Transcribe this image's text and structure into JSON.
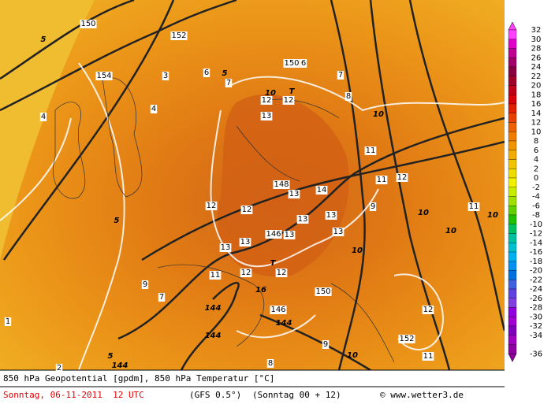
{
  "map": {
    "labels": [
      "5",
      "154",
      "150",
      "152",
      "3",
      "4",
      "4",
      "6",
      "5",
      "7",
      "150",
      "6",
      "10",
      "T",
      "12",
      "12",
      "13",
      "7",
      "8",
      "10",
      "11",
      "11",
      "12",
      "148",
      "13",
      "14",
      "12",
      "12",
      "13",
      "13",
      "9",
      "10",
      "11",
      "10",
      "5",
      "146",
      "13",
      "13",
      "13",
      "13",
      "10",
      "10",
      "T",
      "12",
      "12",
      "11",
      "16",
      "150",
      "144",
      "144",
      "144",
      "146",
      "9",
      "7",
      "12",
      "152",
      "11",
      "10",
      "9",
      "8",
      "5",
      "144",
      "1",
      "2"
    ]
  },
  "legend": {
    "levels": [
      {
        "label": "32",
        "color": "#ff40ff"
      },
      {
        "label": "30",
        "color": "#e000c8"
      },
      {
        "label": "28",
        "color": "#c00090"
      },
      {
        "label": "26",
        "color": "#a00068"
      },
      {
        "label": "24",
        "color": "#880040"
      },
      {
        "label": "22",
        "color": "#a00028"
      },
      {
        "label": "20",
        "color": "#c00018"
      },
      {
        "label": "18",
        "color": "#d80008"
      },
      {
        "label": "16",
        "color": "#e02000"
      },
      {
        "label": "14",
        "color": "#e84000"
      },
      {
        "label": "12",
        "color": "#ec6000"
      },
      {
        "label": "10",
        "color": "#f07c00"
      },
      {
        "label": "8",
        "color": "#f09400"
      },
      {
        "label": "6",
        "color": "#f0ac00"
      },
      {
        "label": "4",
        "color": "#f0c400"
      },
      {
        "label": "2",
        "color": "#f0dc00"
      },
      {
        "label": "0",
        "color": "#f0f000"
      },
      {
        "label": "-2",
        "color": "#c8ec00"
      },
      {
        "label": "-4",
        "color": "#a0e000"
      },
      {
        "label": "-6",
        "color": "#60d000"
      },
      {
        "label": "-8",
        "color": "#20c000"
      },
      {
        "label": "-10",
        "color": "#00c060"
      },
      {
        "label": "-12",
        "color": "#00c0a0"
      },
      {
        "label": "-14",
        "color": "#00c0d0"
      },
      {
        "label": "-16",
        "color": "#00b0f0"
      },
      {
        "label": "-18",
        "color": "#0090f0"
      },
      {
        "label": "-20",
        "color": "#0070e0"
      },
      {
        "label": "-22",
        "color": "#4060e0"
      },
      {
        "label": "-24",
        "color": "#6040e0"
      },
      {
        "label": "-26",
        "color": "#8040e0"
      },
      {
        "label": "-28",
        "color": "#9000e0"
      },
      {
        "label": "-30",
        "color": "#a000d0"
      },
      {
        "label": "-32",
        "color": "#8000c0"
      },
      {
        "label": "-34",
        "color": "#a000c0"
      },
      {
        "label": "-36",
        "color": "#9000a0"
      }
    ]
  },
  "footer": {
    "line1": "850 hPa Geopotential [gpdm], 850 hPa Temperatur [°C]",
    "date": "Sonntag, 06-11-2011  12 UTC",
    "model": "(GFS 0.5°)",
    "run": "(Sonntag 00 + 12)",
    "copyright": "© www.wetter3.de"
  }
}
